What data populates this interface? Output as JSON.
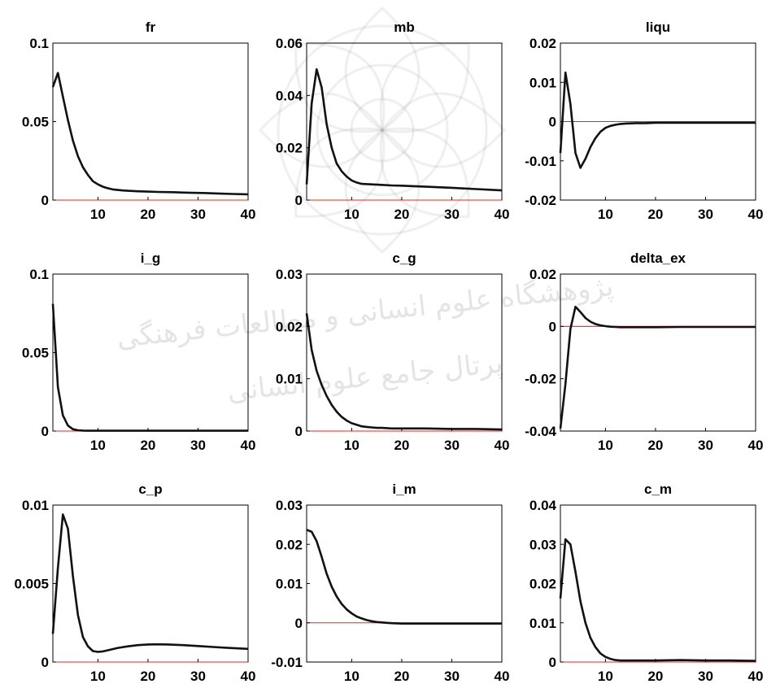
{
  "watermark": {
    "line1": "پژوهشگاه علوم انسانی و مطالعات فرهنگی",
    "line2": "پرتال جامع علوم انسانی"
  },
  "chart_data": [
    {
      "type": "line",
      "title": "fr",
      "xlim": [
        1,
        40
      ],
      "ylim": [
        0,
        0.1
      ],
      "yticks": [
        {
          "v": 0,
          "label": "0"
        },
        {
          "v": 0.05,
          "label": "0.05"
        },
        {
          "v": 0.1,
          "label": "0.1"
        }
      ],
      "xticks": [
        {
          "v": 10,
          "label": "10"
        },
        {
          "v": 20,
          "label": "20"
        },
        {
          "v": 30,
          "label": "30"
        },
        {
          "v": 40,
          "label": "40"
        }
      ],
      "x": [
        1,
        2,
        3,
        4,
        5,
        6,
        7,
        8,
        9,
        10,
        11,
        12,
        13,
        14,
        15,
        16,
        18,
        20,
        22,
        25,
        28,
        31,
        34,
        37,
        40
      ],
      "y": [
        0.072,
        0.081,
        0.066,
        0.051,
        0.038,
        0.028,
        0.021,
        0.016,
        0.012,
        0.01,
        0.0085,
        0.0075,
        0.0068,
        0.0064,
        0.0061,
        0.0059,
        0.0056,
        0.0054,
        0.0052,
        0.005,
        0.0047,
        0.0045,
        0.0042,
        0.0039,
        0.0037
      ]
    },
    {
      "type": "line",
      "title": "mb",
      "xlim": [
        1,
        40
      ],
      "ylim": [
        0,
        0.06
      ],
      "yticks": [
        {
          "v": 0,
          "label": "0"
        },
        {
          "v": 0.02,
          "label": "0.02"
        },
        {
          "v": 0.04,
          "label": "0.04"
        },
        {
          "v": 0.06,
          "label": "0.06"
        }
      ],
      "xticks": [
        {
          "v": 10,
          "label": "10"
        },
        {
          "v": 20,
          "label": "20"
        },
        {
          "v": 30,
          "label": "30"
        },
        {
          "v": 40,
          "label": "40"
        }
      ],
      "x": [
        1,
        2,
        3,
        4,
        5,
        6,
        7,
        8,
        9,
        10,
        11,
        12,
        14,
        16,
        18,
        20,
        25,
        30,
        35,
        40
      ],
      "y": [
        0.006,
        0.037,
        0.05,
        0.043,
        0.029,
        0.02,
        0.014,
        0.011,
        0.009,
        0.0075,
        0.0067,
        0.0062,
        0.006,
        0.0058,
        0.0056,
        0.0055,
        0.0051,
        0.0047,
        0.0042,
        0.0037
      ]
    },
    {
      "type": "line",
      "title": "liqu",
      "xlim": [
        1,
        40
      ],
      "ylim": [
        -0.02,
        0.02
      ],
      "yticks": [
        {
          "v": -0.02,
          "label": "-0.02"
        },
        {
          "v": -0.01,
          "label": "-0.01"
        },
        {
          "v": 0,
          "label": "0"
        },
        {
          "v": 0.01,
          "label": "0.01"
        },
        {
          "v": 0.02,
          "label": "0.02"
        }
      ],
      "xticks": [
        {
          "v": 10,
          "label": "10"
        },
        {
          "v": 20,
          "label": "20"
        },
        {
          "v": 30,
          "label": "30"
        },
        {
          "v": 40,
          "label": "40"
        }
      ],
      "x": [
        1,
        2,
        3,
        4,
        5,
        6,
        7,
        8,
        9,
        10,
        11,
        12,
        13,
        14,
        16,
        18,
        20,
        25,
        30,
        35,
        40
      ],
      "y": [
        -0.008,
        0.0125,
        0.0045,
        -0.008,
        -0.0118,
        -0.0095,
        -0.0065,
        -0.0042,
        -0.0026,
        -0.0016,
        -0.0011,
        -0.0008,
        -0.0006,
        -0.0005,
        -0.0004,
        -0.0004,
        -0.0003,
        -0.0003,
        -0.0003,
        -0.0003,
        -0.0003
      ]
    },
    {
      "type": "line",
      "title": "i_g",
      "xlim": [
        1,
        40
      ],
      "ylim": [
        0,
        0.1
      ],
      "yticks": [
        {
          "v": 0,
          "label": "0"
        },
        {
          "v": 0.05,
          "label": "0.05"
        },
        {
          "v": 0.1,
          "label": "0.1"
        }
      ],
      "xticks": [
        {
          "v": 10,
          "label": "10"
        },
        {
          "v": 20,
          "label": "20"
        },
        {
          "v": 30,
          "label": "30"
        },
        {
          "v": 40,
          "label": "40"
        }
      ],
      "x": [
        1,
        2,
        3,
        4,
        5,
        6,
        7,
        8,
        10,
        15,
        20,
        25,
        30,
        35,
        40
      ],
      "y": [
        0.081,
        0.028,
        0.01,
        0.0035,
        0.0012,
        0.0005,
        0.0003,
        0.0002,
        0.0002,
        0.0002,
        0.0002,
        0.0002,
        0.0002,
        0.0002,
        0.0002
      ]
    },
    {
      "type": "line",
      "title": "c_g",
      "xlim": [
        1,
        40
      ],
      "ylim": [
        0,
        0.03
      ],
      "yticks": [
        {
          "v": 0,
          "label": "0"
        },
        {
          "v": 0.01,
          "label": "0.01"
        },
        {
          "v": 0.02,
          "label": "0.02"
        },
        {
          "v": 0.03,
          "label": "0.03"
        }
      ],
      "xticks": [
        {
          "v": 10,
          "label": "10"
        },
        {
          "v": 20,
          "label": "20"
        },
        {
          "v": 30,
          "label": "30"
        },
        {
          "v": 40,
          "label": "40"
        }
      ],
      "x": [
        1,
        2,
        3,
        4,
        5,
        6,
        7,
        8,
        9,
        10,
        11,
        12,
        13,
        14,
        15,
        16,
        18,
        20,
        22,
        25,
        30,
        35,
        40
      ],
      "y": [
        0.0225,
        0.0155,
        0.0115,
        0.0088,
        0.0067,
        0.005,
        0.0037,
        0.0027,
        0.002,
        0.0015,
        0.0012,
        0.0009,
        0.0008,
        0.0007,
        0.0006,
        0.0006,
        0.0005,
        0.0005,
        0.0005,
        0.0005,
        0.0004,
        0.0004,
        0.0003
      ]
    },
    {
      "type": "line",
      "title": "delta_ex",
      "xlim": [
        1,
        40
      ],
      "ylim": [
        -0.04,
        0.02
      ],
      "yticks": [
        {
          "v": -0.04,
          "label": "-0.04"
        },
        {
          "v": -0.02,
          "label": "-0.02"
        },
        {
          "v": 0,
          "label": "0"
        },
        {
          "v": 0.02,
          "label": "0.02"
        }
      ],
      "xticks": [
        {
          "v": 10,
          "label": "10"
        },
        {
          "v": 20,
          "label": "20"
        },
        {
          "v": 30,
          "label": "30"
        },
        {
          "v": 40,
          "label": "40"
        }
      ],
      "x": [
        1,
        2,
        3,
        4,
        5,
        6,
        7,
        8,
        9,
        10,
        11,
        12,
        13,
        14,
        16,
        18,
        20,
        25,
        30,
        35,
        40
      ],
      "y": [
        -0.039,
        -0.022,
        -0.001,
        0.0075,
        0.0055,
        0.0032,
        0.0018,
        0.0009,
        0.0004,
        0.0001,
        -0.0001,
        -0.0002,
        -0.0003,
        -0.0003,
        -0.0003,
        -0.0003,
        -0.0003,
        -0.0002,
        -0.0002,
        -0.0002,
        -0.0002
      ]
    },
    {
      "type": "line",
      "title": "c_p",
      "xlim": [
        1,
        40
      ],
      "ylim": [
        0,
        0.01
      ],
      "yticks": [
        {
          "v": 0,
          "label": "0"
        },
        {
          "v": 0.005,
          "label": "0.005"
        },
        {
          "v": 0.01,
          "label": "0.01"
        }
      ],
      "xticks": [
        {
          "v": 10,
          "label": "10"
        },
        {
          "v": 20,
          "label": "20"
        },
        {
          "v": 30,
          "label": "30"
        },
        {
          "v": 40,
          "label": "40"
        }
      ],
      "x": [
        1,
        2,
        3,
        4,
        5,
        6,
        7,
        8,
        9,
        10,
        11,
        12,
        14,
        16,
        18,
        20,
        22,
        24,
        27,
        30,
        33,
        36,
        40
      ],
      "y": [
        0.0018,
        0.006,
        0.0094,
        0.0085,
        0.0055,
        0.003,
        0.0016,
        0.001,
        0.0007,
        0.00065,
        0.00068,
        0.00075,
        0.0009,
        0.001,
        0.00108,
        0.00112,
        0.00113,
        0.00112,
        0.00108,
        0.00102,
        0.00096,
        0.0009,
        0.00084
      ]
    },
    {
      "type": "line",
      "title": "i_m",
      "xlim": [
        1,
        40
      ],
      "ylim": [
        -0.01,
        0.03
      ],
      "yticks": [
        {
          "v": -0.01,
          "label": "-0.01"
        },
        {
          "v": 0,
          "label": "0"
        },
        {
          "v": 0.01,
          "label": "0.01"
        },
        {
          "v": 0.02,
          "label": "0.02"
        },
        {
          "v": 0.03,
          "label": "0.03"
        }
      ],
      "xticks": [
        {
          "v": 10,
          "label": "10"
        },
        {
          "v": 20,
          "label": "20"
        },
        {
          "v": 30,
          "label": "30"
        },
        {
          "v": 40,
          "label": "40"
        }
      ],
      "x": [
        1,
        2,
        3,
        4,
        5,
        6,
        7,
        8,
        9,
        10,
        11,
        12,
        13,
        14,
        15,
        16,
        17,
        18,
        20,
        22,
        25,
        30,
        35,
        40
      ],
      "y": [
        0.0237,
        0.0232,
        0.0208,
        0.0168,
        0.0125,
        0.0092,
        0.0067,
        0.0048,
        0.0034,
        0.0024,
        0.0016,
        0.0011,
        0.0007,
        0.0004,
        0.0002,
        0.0001,
        0.0,
        -0.0001,
        -0.0002,
        -0.0002,
        -0.0002,
        -0.0002,
        -0.0002,
        -0.0002
      ]
    },
    {
      "type": "line",
      "title": "c_m",
      "xlim": [
        1,
        40
      ],
      "ylim": [
        0,
        0.04
      ],
      "yticks": [
        {
          "v": 0,
          "label": "0"
        },
        {
          "v": 0.01,
          "label": "0.01"
        },
        {
          "v": 0.02,
          "label": "0.02"
        },
        {
          "v": 0.03,
          "label": "0.03"
        },
        {
          "v": 0.04,
          "label": "0.04"
        }
      ],
      "xticks": [
        {
          "v": 10,
          "label": "10"
        },
        {
          "v": 20,
          "label": "20"
        },
        {
          "v": 30,
          "label": "30"
        },
        {
          "v": 40,
          "label": "40"
        }
      ],
      "x": [
        1,
        2,
        3,
        4,
        5,
        6,
        7,
        8,
        9,
        10,
        11,
        12,
        13,
        14,
        16,
        18,
        20,
        25,
        30,
        35,
        40
      ],
      "y": [
        0.0162,
        0.0313,
        0.03,
        0.023,
        0.0155,
        0.01,
        0.0062,
        0.0038,
        0.0022,
        0.0013,
        0.0008,
        0.0005,
        0.0004,
        0.0004,
        0.0004,
        0.0004,
        0.0004,
        0.0005,
        0.0004,
        0.0004,
        0.0003
      ]
    }
  ]
}
